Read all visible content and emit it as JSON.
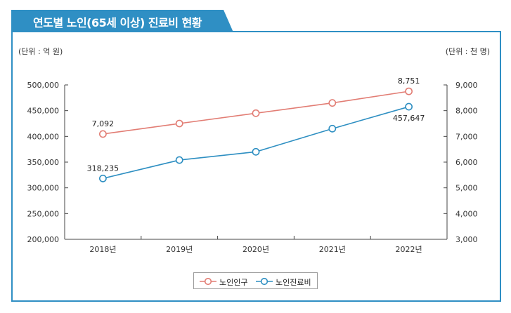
{
  "title": "연도별 노인(65세 이상) 진료비 현황",
  "unit_left": "(단위 : 억 원)",
  "unit_right": "(단위 : 천 명)",
  "colors": {
    "accent": "#2f8fc4",
    "population": "#e27d74",
    "medical_cost": "#2e8fc2"
  },
  "chart_data": {
    "type": "line",
    "categories": [
      "2018년",
      "2019년",
      "2020년",
      "2021년",
      "2022년"
    ],
    "left_axis": {
      "ticks": [
        "200,000",
        "250,000",
        "300,000",
        "350,000",
        "400,000",
        "450,000",
        "500,000"
      ],
      "range": [
        200000,
        500000
      ]
    },
    "right_axis": {
      "ticks": [
        "3,000",
        "4,000",
        "5,000",
        "6,000",
        "7,000",
        "8,000",
        "9,000"
      ],
      "range": [
        3000,
        9000
      ]
    },
    "series": [
      {
        "name": "노인인구",
        "axis": "right",
        "color": "#e27d74",
        "values": [
          7092,
          7500,
          7900,
          8300,
          8751
        ],
        "labels": [
          "7,092",
          "",
          "",
          "",
          "8,751"
        ]
      },
      {
        "name": "노인진료비",
        "axis": "left",
        "color": "#2e8fc2",
        "values": [
          318235,
          354000,
          370000,
          415000,
          457647
        ],
        "labels": [
          "318,235",
          "",
          "",
          "",
          "457,647"
        ]
      }
    ],
    "legend": "bottom"
  }
}
